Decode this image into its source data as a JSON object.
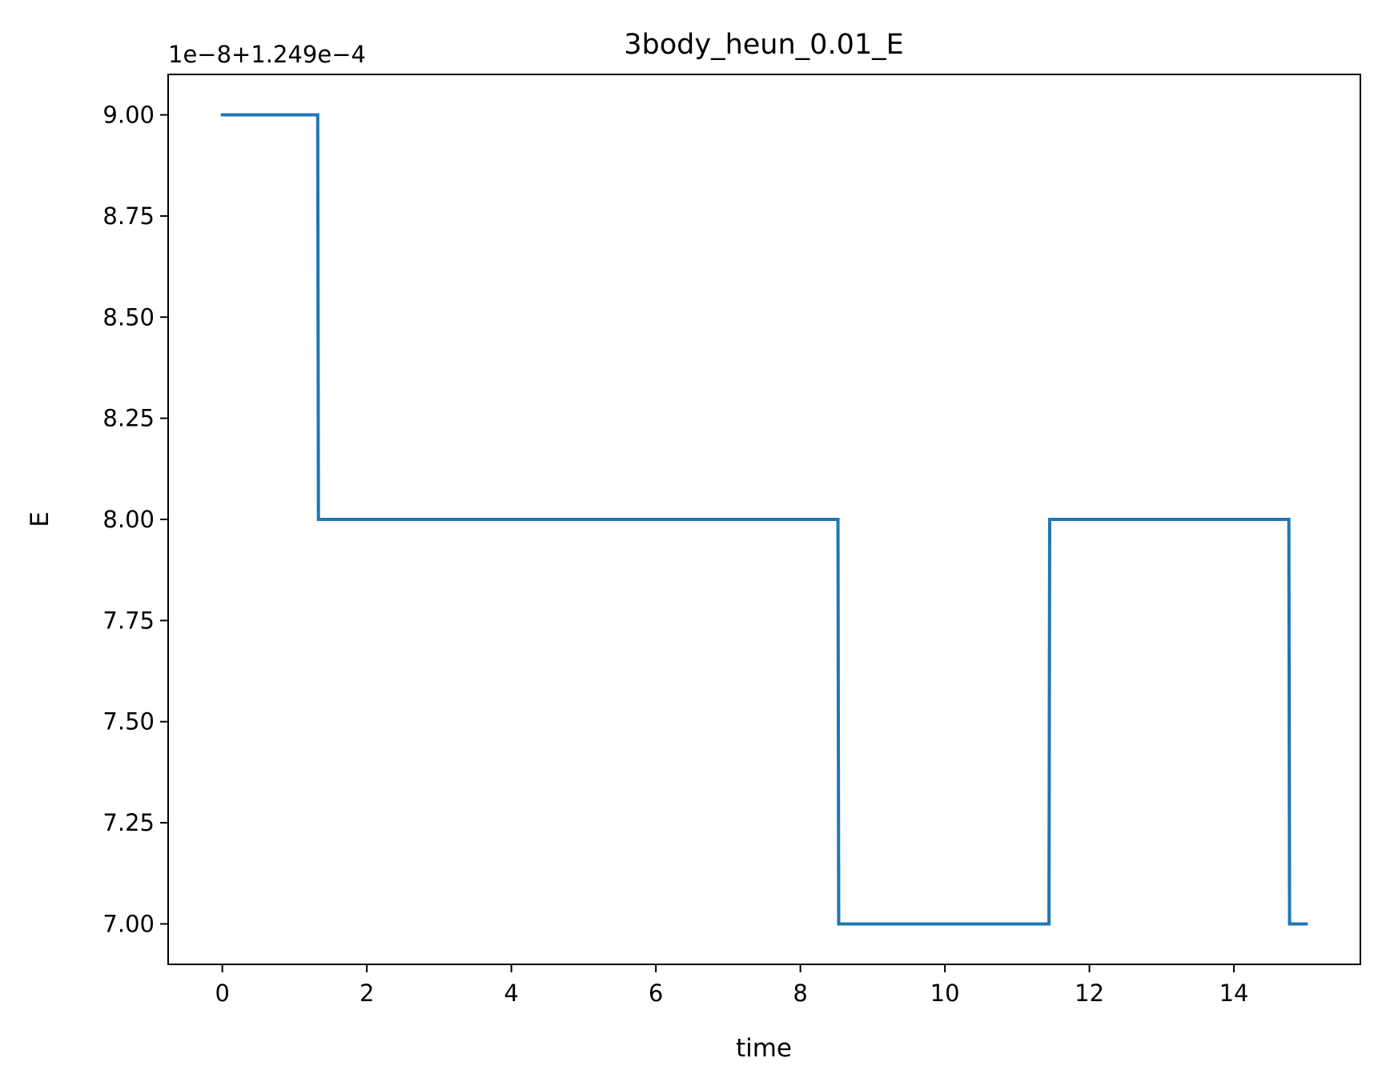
{
  "chart_data": {
    "type": "line",
    "title": "3body_heun_0.01_E",
    "xlabel": "time",
    "ylabel": "E",
    "y_offset_label": "1e−8+1.249e−4",
    "xlim": [
      -0.75,
      15.75
    ],
    "ylim": [
      6.9,
      9.1
    ],
    "x_ticks": [
      0,
      2,
      4,
      6,
      8,
      10,
      12,
      14
    ],
    "x_tick_labels": [
      "0",
      "2",
      "4",
      "6",
      "8",
      "10",
      "12",
      "14"
    ],
    "y_ticks": [
      7.0,
      7.25,
      7.5,
      7.75,
      8.0,
      8.25,
      8.5,
      8.75,
      9.0
    ],
    "y_tick_labels": [
      "7.00",
      "7.25",
      "7.50",
      "7.75",
      "8.00",
      "8.25",
      "8.50",
      "8.75",
      "9.00"
    ],
    "grid": false,
    "series": [
      {
        "color": "#1f77b4",
        "x": [
          0,
          1.32,
          1.33,
          8.52,
          8.53,
          11.44,
          11.45,
          14.76,
          14.77,
          15.0
        ],
        "y": [
          9.0,
          9.0,
          8.0,
          8.0,
          7.0,
          7.0,
          8.0,
          8.0,
          7.0,
          7.0
        ]
      }
    ]
  }
}
